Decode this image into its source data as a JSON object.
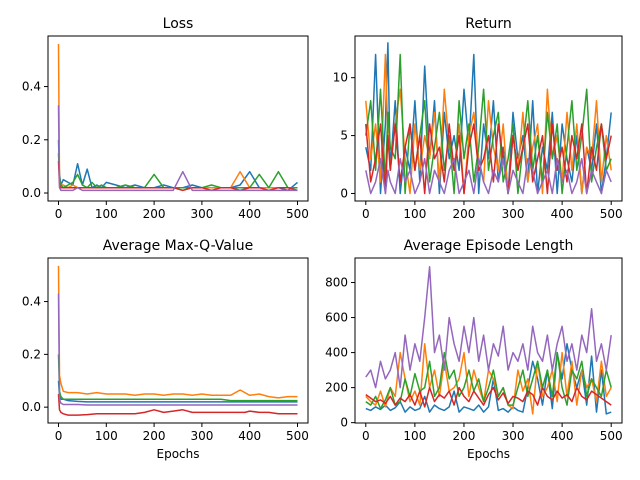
{
  "colors": {
    "series": [
      "#1f77b4",
      "#ff7f0e",
      "#2ca02c",
      "#d62728",
      "#9467bd"
    ],
    "axis": "#000000",
    "background": "#ffffff"
  },
  "chart_data": [
    {
      "type": "line",
      "title": "Loss",
      "xlabel": "",
      "ylabel": "",
      "xlim": [
        -22,
        522
      ],
      "ylim": [
        -0.03,
        0.59
      ],
      "xticks": [
        0,
        100,
        200,
        300,
        400,
        500
      ],
      "yticks": [
        0.0,
        0.2,
        0.4
      ],
      "ytick_labels": [
        "0.0",
        "0.2",
        "0.4"
      ],
      "x": [
        0,
        2,
        5,
        10,
        20,
        30,
        40,
        50,
        60,
        70,
        80,
        90,
        100,
        120,
        140,
        160,
        180,
        200,
        220,
        240,
        260,
        280,
        300,
        320,
        340,
        360,
        380,
        400,
        420,
        440,
        460,
        480,
        500
      ],
      "series": [
        {
          "values": [
            0.2,
            0.07,
            0.03,
            0.05,
            0.04,
            0.03,
            0.11,
            0.03,
            0.09,
            0.02,
            0.03,
            0.02,
            0.04,
            0.03,
            0.02,
            0.03,
            0.02,
            0.02,
            0.03,
            0.02,
            0.02,
            0.03,
            0.02,
            0.02,
            0.02,
            0.02,
            0.03,
            0.08,
            0.02,
            0.02,
            0.02,
            0.01,
            0.04
          ]
        },
        {
          "values": [
            0.56,
            0.05,
            0.03,
            0.03,
            0.02,
            0.03,
            0.02,
            0.02,
            0.02,
            0.02,
            0.02,
            0.02,
            0.02,
            0.02,
            0.02,
            0.02,
            0.02,
            0.02,
            0.02,
            0.02,
            0.02,
            0.02,
            0.02,
            0.02,
            0.02,
            0.02,
            0.08,
            0.02,
            0.02,
            0.02,
            0.02,
            0.02,
            0.02
          ]
        },
        {
          "values": [
            0.15,
            0.05,
            0.03,
            0.02,
            0.03,
            0.04,
            0.07,
            0.03,
            0.02,
            0.04,
            0.02,
            0.03,
            0.02,
            0.02,
            0.03,
            0.02,
            0.02,
            0.07,
            0.02,
            0.02,
            0.02,
            0.02,
            0.02,
            0.03,
            0.02,
            0.02,
            0.02,
            0.02,
            0.07,
            0.02,
            0.08,
            0.02,
            0.02
          ]
        },
        {
          "values": [
            0.12,
            0.03,
            0.02,
            0.02,
            0.02,
            0.02,
            0.02,
            0.02,
            0.02,
            0.02,
            0.02,
            0.02,
            0.02,
            0.02,
            0.02,
            0.02,
            0.02,
            0.02,
            0.02,
            0.02,
            0.01,
            0.02,
            0.02,
            0.01,
            0.02,
            0.02,
            0.01,
            0.02,
            0.02,
            0.01,
            0.02,
            0.02,
            0.01
          ]
        },
        {
          "values": [
            0.33,
            0.02,
            0.01,
            0.01,
            0.01,
            0.01,
            0.02,
            0.01,
            0.01,
            0.01,
            0.01,
            0.01,
            0.01,
            0.01,
            0.01,
            0.01,
            0.01,
            0.01,
            0.01,
            0.01,
            0.08,
            0.01,
            0.01,
            0.01,
            0.01,
            0.01,
            0.01,
            0.01,
            0.01,
            0.01,
            0.01,
            0.01,
            0.01
          ]
        }
      ]
    },
    {
      "type": "line",
      "title": "Return",
      "xlabel": "",
      "ylabel": "",
      "xlim": [
        -22,
        522
      ],
      "ylim": [
        -0.65,
        13.6
      ],
      "xticks": [
        0,
        100,
        200,
        300,
        400,
        500
      ],
      "yticks": [
        0,
        5,
        10
      ],
      "ytick_labels": [
        "0",
        "5",
        "10"
      ],
      "x": [
        0,
        10,
        20,
        30,
        40,
        45,
        50,
        60,
        70,
        80,
        90,
        100,
        110,
        120,
        130,
        140,
        150,
        160,
        170,
        180,
        190,
        200,
        210,
        220,
        230,
        240,
        250,
        260,
        270,
        280,
        290,
        300,
        310,
        320,
        330,
        340,
        350,
        360,
        370,
        380,
        390,
        400,
        410,
        420,
        430,
        440,
        450,
        460,
        470,
        480,
        490,
        500
      ],
      "series": [
        {
          "values": [
            4,
            2,
            12,
            0,
            6,
            13,
            2,
            8,
            0,
            4,
            2,
            8,
            1,
            11,
            3,
            8,
            0,
            7,
            3,
            5,
            2,
            9,
            4,
            12,
            0,
            6,
            3,
            8,
            1,
            4,
            0,
            7,
            3,
            5,
            1,
            8,
            0,
            4,
            2,
            7,
            0,
            6,
            3,
            1,
            5,
            0,
            4,
            2,
            6,
            0,
            3,
            7
          ]
        },
        {
          "values": [
            8,
            3,
            6,
            1,
            12,
            5,
            2,
            6,
            9,
            3,
            0,
            6,
            2,
            5,
            3,
            7,
            1,
            9,
            4,
            2,
            6,
            0,
            5,
            7,
            3,
            1,
            8,
            4,
            2,
            6,
            0,
            5,
            2,
            7,
            1,
            4,
            6,
            0,
            9,
            3,
            5,
            1,
            7,
            2,
            6,
            0,
            4,
            3,
            8,
            1,
            5,
            2
          ]
        },
        {
          "values": [
            5,
            8,
            2,
            9,
            1,
            7,
            4,
            3,
            12,
            0,
            6,
            2,
            5,
            8,
            1,
            4,
            7,
            2,
            5,
            0,
            8,
            3,
            6,
            1,
            4,
            9,
            2,
            5,
            7,
            1,
            3,
            6,
            0,
            4,
            8,
            2,
            5,
            1,
            7,
            3,
            6,
            0,
            4,
            8,
            2,
            5,
            9,
            1,
            4,
            6,
            2,
            3
          ]
        },
        {
          "values": [
            6,
            1,
            3,
            6,
            0,
            5,
            2,
            6,
            1,
            4,
            6,
            2,
            5,
            0,
            6,
            3,
            4,
            1,
            6,
            2,
            5,
            0,
            4,
            6,
            2,
            3,
            5,
            1,
            6,
            3,
            0,
            5,
            2,
            4,
            6,
            1,
            3,
            5,
            0,
            6,
            2,
            4,
            1,
            5,
            3,
            6,
            0,
            4,
            2,
            6,
            3,
            5
          ]
        },
        {
          "values": [
            2,
            0,
            1,
            3,
            0,
            2,
            1,
            0,
            3,
            1,
            2,
            0,
            1,
            3,
            0,
            2,
            1,
            0,
            2,
            3,
            0,
            1,
            2,
            0,
            3,
            1,
            0,
            2,
            1,
            3,
            0,
            2,
            1,
            0,
            3,
            2,
            0,
            1,
            2,
            0,
            3,
            1,
            2,
            0,
            1,
            3,
            0,
            2,
            1,
            0,
            2,
            1
          ]
        }
      ]
    },
    {
      "type": "line",
      "title": "Average Max-Q-Value",
      "xlabel": "Epochs",
      "ylabel": "",
      "xlim": [
        -22,
        522
      ],
      "ylim": [
        -0.06,
        0.565
      ],
      "xticks": [
        0,
        100,
        200,
        300,
        400,
        500
      ],
      "yticks": [
        0.0,
        0.2,
        0.4
      ],
      "ytick_labels": [
        "0.0",
        "0.2",
        "0.4"
      ],
      "x": [
        0,
        2,
        5,
        10,
        20,
        40,
        60,
        80,
        100,
        120,
        140,
        160,
        180,
        200,
        220,
        240,
        260,
        280,
        300,
        320,
        340,
        360,
        380,
        390,
        400,
        420,
        440,
        460,
        480,
        500
      ],
      "series": [
        {
          "values": [
            0.1,
            0.04,
            0.03,
            0.03,
            0.025,
            0.022,
            0.02,
            0.02,
            0.02,
            0.02,
            0.02,
            0.02,
            0.02,
            0.02,
            0.02,
            0.02,
            0.02,
            0.02,
            0.02,
            0.02,
            0.02,
            0.02,
            0.02,
            0.02,
            0.02,
            0.02,
            0.02,
            0.02,
            0.02,
            0.02
          ]
        },
        {
          "values": [
            0.535,
            0.12,
            0.09,
            0.06,
            0.055,
            0.055,
            0.05,
            0.055,
            0.05,
            0.05,
            0.05,
            0.045,
            0.05,
            0.05,
            0.045,
            0.05,
            0.05,
            0.045,
            0.05,
            0.045,
            0.045,
            0.045,
            0.065,
            0.055,
            0.045,
            0.05,
            0.04,
            0.035,
            0.04,
            0.04
          ]
        },
        {
          "values": [
            0.2,
            0.06,
            0.04,
            0.03,
            0.03,
            0.03,
            0.03,
            0.03,
            0.03,
            0.03,
            0.03,
            0.03,
            0.03,
            0.03,
            0.03,
            0.03,
            0.03,
            0.03,
            0.03,
            0.03,
            0.03,
            0.025,
            0.025,
            0.025,
            0.025,
            0.025,
            0.025,
            0.025,
            0.025,
            0.025
          ]
        },
        {
          "values": [
            0.05,
            -0.01,
            -0.02,
            -0.025,
            -0.03,
            -0.03,
            -0.028,
            -0.025,
            -0.025,
            -0.025,
            -0.025,
            -0.025,
            -0.02,
            -0.01,
            -0.02,
            -0.015,
            -0.01,
            -0.02,
            -0.02,
            -0.02,
            -0.02,
            -0.02,
            -0.02,
            -0.02,
            -0.015,
            -0.02,
            -0.02,
            -0.025,
            -0.025,
            -0.025
          ]
        },
        {
          "values": [
            0.43,
            0.03,
            0.015,
            0.01,
            0.01,
            0.01,
            0.008,
            0.008,
            0.008,
            0.008,
            0.008,
            0.008,
            0.008,
            0.008,
            0.008,
            0.008,
            0.008,
            0.008,
            0.008,
            0.008,
            0.008,
            0.008,
            0.008,
            0.008,
            0.008,
            0.008,
            0.008,
            0.008,
            0.008,
            0.008
          ]
        }
      ]
    },
    {
      "type": "line",
      "title": "Average Episode Length",
      "xlabel": "Epochs",
      "ylabel": "",
      "xlim": [
        -22,
        522
      ],
      "ylim": [
        -2,
        940
      ],
      "xticks": [
        0,
        100,
        200,
        300,
        400,
        500
      ],
      "yticks": [
        0,
        200,
        400,
        600,
        800
      ],
      "ytick_labels": [
        "0",
        "200",
        "400",
        "600",
        "800"
      ],
      "x": [
        0,
        10,
        20,
        30,
        40,
        50,
        60,
        70,
        80,
        90,
        100,
        110,
        120,
        130,
        140,
        150,
        160,
        170,
        180,
        190,
        200,
        210,
        220,
        230,
        240,
        250,
        260,
        270,
        280,
        290,
        300,
        310,
        320,
        330,
        340,
        350,
        360,
        370,
        380,
        390,
        400,
        410,
        420,
        430,
        440,
        450,
        460,
        470,
        480,
        490,
        500
      ],
      "series": [
        {
          "values": [
            80,
            70,
            90,
            75,
            100,
            70,
            85,
            120,
            60,
            90,
            70,
            80,
            150,
            60,
            100,
            80,
            70,
            90,
            180,
            60,
            90,
            80,
            70,
            100,
            60,
            90,
            250,
            70,
            80,
            60,
            90,
            70,
            60,
            200,
            350,
            250,
            100,
            300,
            80,
            400,
            250,
            450,
            300,
            200,
            300,
            100,
            380,
            60,
            300,
            50,
            60
          ]
        },
        {
          "values": [
            150,
            120,
            100,
            180,
            90,
            200,
            150,
            400,
            250,
            120,
            180,
            100,
            450,
            200,
            300,
            150,
            350,
            180,
            200,
            250,
            400,
            150,
            300,
            200,
            120,
            300,
            250,
            150,
            200,
            100,
            80,
            300,
            180,
            250,
            50,
            350,
            150,
            200,
            300,
            120,
            400,
            150,
            350,
            100,
            300,
            200,
            250,
            120,
            350,
            150,
            200
          ]
        },
        {
          "values": [
            120,
            100,
            150,
            80,
            130,
            200,
            100,
            120,
            250,
            150,
            280,
            180,
            200,
            350,
            150,
            200,
            400,
            250,
            300,
            150,
            200,
            300,
            180,
            250,
            120,
            200,
            300,
            150,
            200,
            100,
            100,
            200,
            300,
            150,
            250,
            350,
            200,
            300,
            150,
            400,
            200,
            100,
            300,
            250,
            350,
            150,
            250,
            200,
            150,
            300,
            200
          ]
        },
        {
          "values": [
            160,
            140,
            120,
            130,
            110,
            150,
            100,
            140,
            120,
            160,
            100,
            180,
            90,
            200,
            120,
            160,
            140,
            180,
            100,
            200,
            150,
            120,
            180,
            140,
            100,
            160,
            200,
            130,
            170,
            110,
            150,
            140,
            120,
            180,
            160,
            100,
            200,
            150,
            130,
            180,
            140,
            160,
            120,
            200,
            150,
            130,
            180,
            160,
            140,
            120,
            100
          ]
        },
        {
          "values": [
            260,
            300,
            200,
            350,
            250,
            300,
            400,
            200,
            500,
            300,
            450,
            350,
            600,
            890,
            400,
            500,
            300,
            600,
            450,
            350,
            550,
            400,
            600,
            350,
            500,
            300,
            450,
            380,
            550,
            300,
            400,
            350,
            450,
            300,
            550,
            400,
            350,
            500,
            300,
            450,
            550,
            350,
            450,
            300,
            500,
            400,
            650,
            350,
            450,
            300,
            500
          ]
        }
      ]
    }
  ]
}
